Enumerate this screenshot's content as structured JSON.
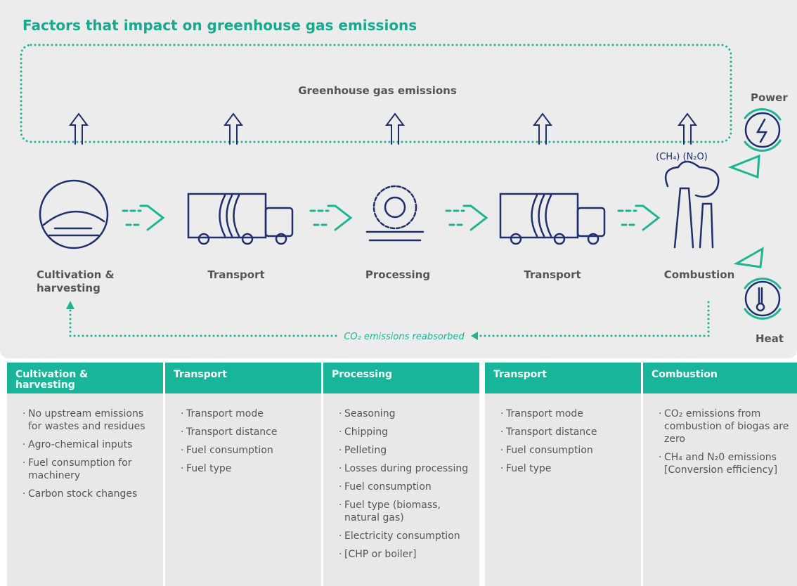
{
  "header": {
    "title": "Factors that impact on greenhouse gas emissions"
  },
  "diagram": {
    "emissions_label": "Greenhouse gas emissions",
    "stages": [
      {
        "label": "Cultivation & harvesting"
      },
      {
        "label": "Transport"
      },
      {
        "label": "Processing"
      },
      {
        "label": "Transport"
      },
      {
        "label": "Combustion"
      }
    ],
    "gases": "(CH₄) (N₂O)",
    "outputs": [
      "Power",
      "Heat"
    ],
    "reabsorbed": "CO₂ emissions reabsorbed"
  },
  "table": {
    "columns": [
      {
        "heading": "Cultivation & harvesting",
        "items": [
          "No upstream emissions for wastes and residues",
          "Agro-chemical inputs",
          "Fuel consumption for machinery",
          "Carbon stock changes"
        ]
      },
      {
        "heading": "Transport",
        "items": [
          "Transport mode",
          "Transport distance",
          "Fuel consumption",
          "Fuel type"
        ]
      },
      {
        "heading": "Processing",
        "items": [
          "Seasoning",
          "Chipping",
          "Pelleting",
          "Losses during processing",
          "Fuel consumption",
          "Fuel type (biomass, natural gas)",
          "Electricity consumption",
          "[CHP or boiler]"
        ]
      },
      {
        "heading": "Transport",
        "items": [
          "Transport mode",
          "Transport distance",
          "Fuel consumption",
          "Fuel type"
        ]
      },
      {
        "heading": "Combustion",
        "items": [
          "CO₂ emissions from combustion of biogas are zero",
          "CH₄ and N₂0 emissions [Conversion efficiency]"
        ]
      }
    ]
  }
}
